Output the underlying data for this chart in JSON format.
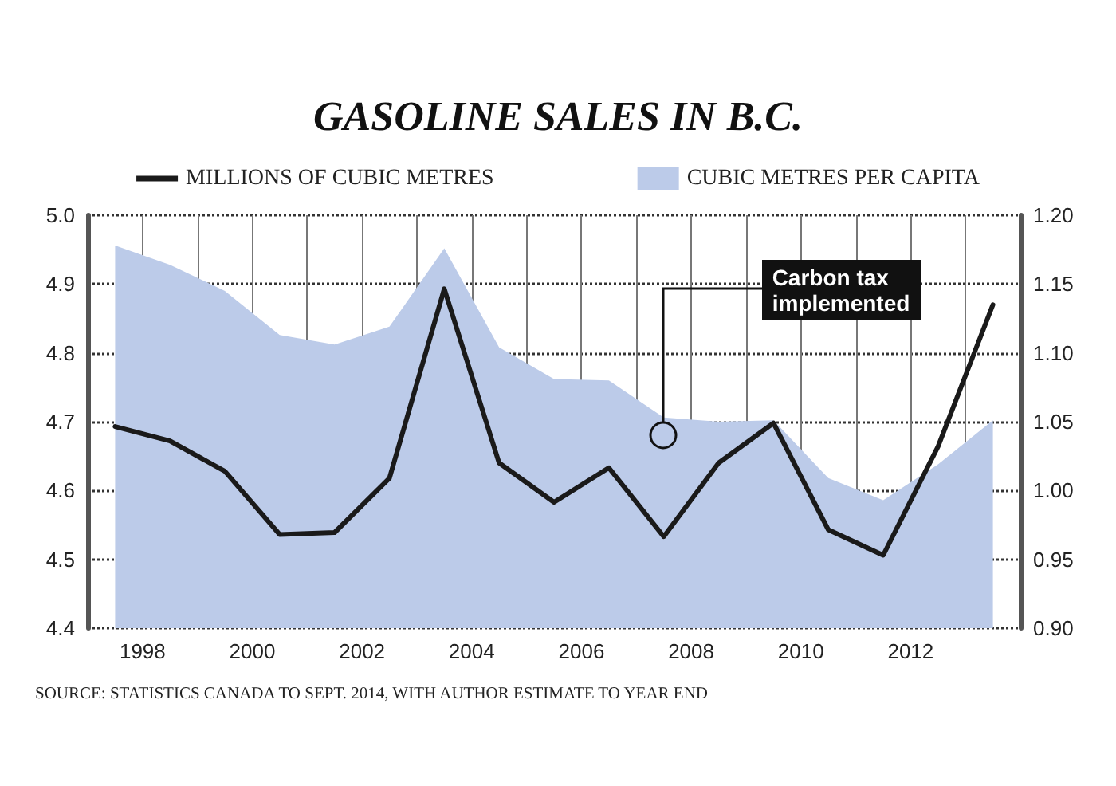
{
  "chart_data": {
    "type": "line",
    "title": "GASOLINE SALES IN B.C.",
    "x": [
      1997.5,
      1998.5,
      1999.5,
      2000.5,
      2001.5,
      2002.5,
      2003.5,
      2004.5,
      2005.5,
      2006.5,
      2007.5,
      2008.5,
      2009.5,
      2010.5,
      2011.5,
      2012.5,
      2013.5
    ],
    "series": [
      {
        "name": "MILLIONS OF CUBIC METRES",
        "color": "#1a1a1a",
        "values": [
          4.693,
          4.672,
          4.628,
          4.536,
          4.539,
          4.618,
          4.893,
          4.64,
          4.583,
          4.633,
          4.533,
          4.64,
          4.698,
          4.543,
          4.506,
          4.664,
          4.87
        ]
      },
      {
        "name": "CUBIC METRES PER CAPITA",
        "type": "area",
        "axis": "y2",
        "color": "#bccbe9",
        "values": [
          1.178,
          1.164,
          1.145,
          1.113,
          1.106,
          1.119,
          1.176,
          1.104,
          1.081,
          1.08,
          1.053,
          1.05,
          1.051,
          1.009,
          0.993,
          1.019,
          1.051
        ]
      }
    ],
    "xlim": [
      1997,
      2014
    ],
    "xticks": [
      1998,
      {
        "value": 1999,
        "label": null
      },
      2000,
      {
        "value": 2001,
        "label": null
      },
      2002,
      {
        "value": 2003,
        "label": null
      },
      2004,
      {
        "value": 2005,
        "label": null
      },
      2006,
      {
        "value": 2007,
        "label": null
      },
      2008,
      {
        "value": 2009,
        "label": null
      },
      2010,
      {
        "value": 2011,
        "label": null
      },
      2012,
      {
        "value": 2013,
        "label": null
      }
    ],
    "ylim": [
      4.4,
      5.0
    ],
    "yticks": [
      4.4,
      4.5,
      4.6,
      4.7,
      4.8,
      4.9,
      {
        "value": 5.0,
        "label": "5.0"
      }
    ],
    "y2lim": [
      0.9,
      1.2
    ],
    "y2ticks": [
      {
        "value": 0.9,
        "label": "0.90"
      },
      0.95,
      {
        "value": 1.0,
        "label": "1.00"
      },
      1.05,
      {
        "value": 1.1,
        "label": "1.10"
      },
      1.15,
      {
        "value": 1.2,
        "label": "1.20"
      }
    ],
    "annotations": [
      {
        "text": "Carbon tax implemented",
        "x": 2007.5,
        "y": 4.68
      },
      "SOURCE: STATISTICS CANADA TO SEPT. 2014, WITH AUTHOR ESTIMATE TO YEAR END"
    ],
    "grid": true,
    "legend": "top",
    "marker": "none",
    "line_style": "solid"
  }
}
